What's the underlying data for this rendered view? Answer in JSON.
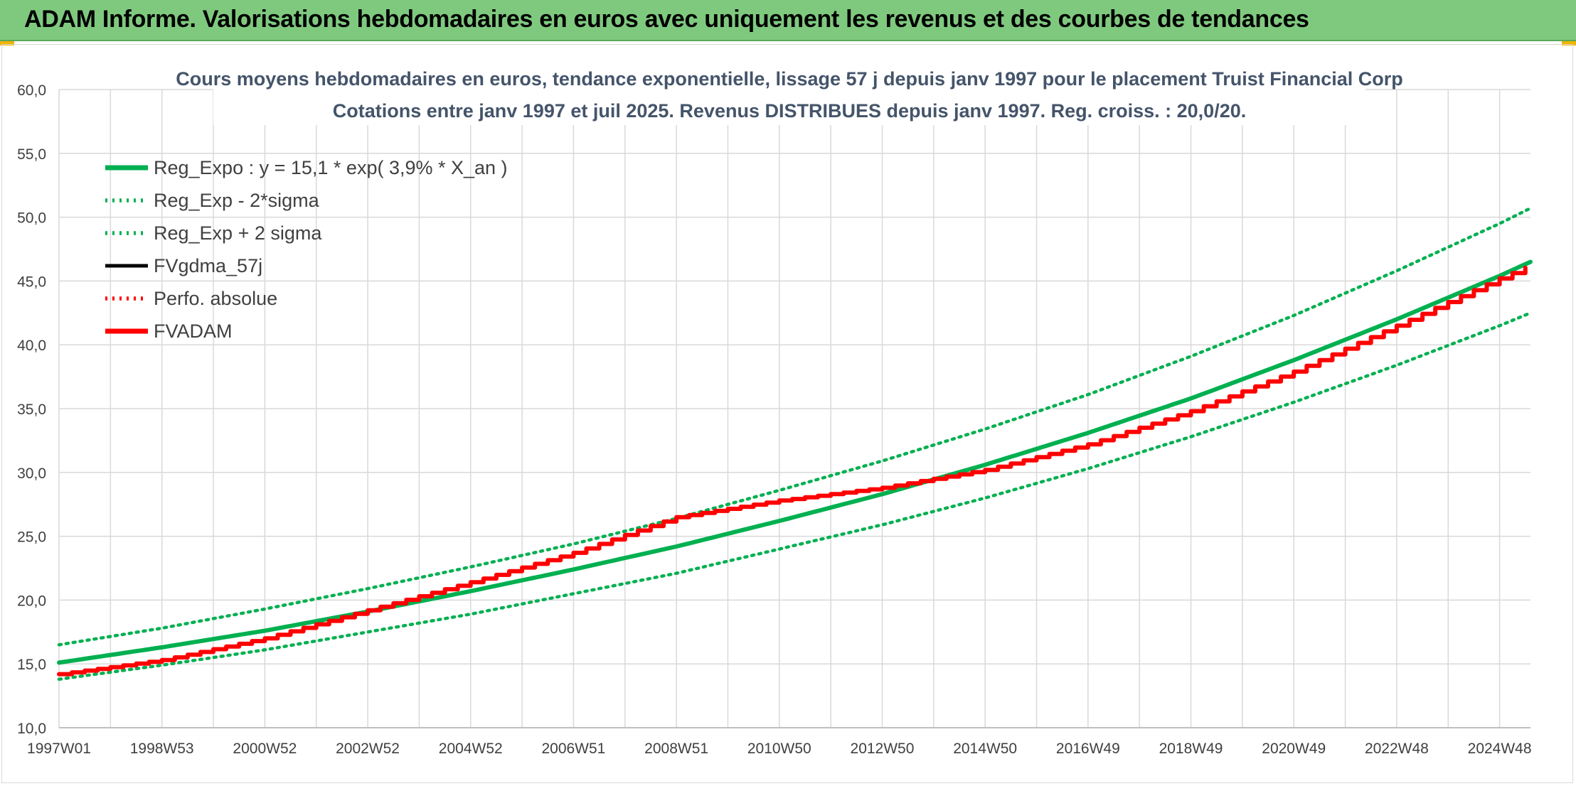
{
  "banner": {
    "title": "ADAM Informe. Valorisations hebdomadaires en euros avec uniquement les revenus et des courbes de tendances"
  },
  "colors": {
    "banner_bg": "#7fc97f",
    "reg_green": "#00b050",
    "fvadam_red": "#ff0000",
    "fvgdma_black": "#000000",
    "grid": "#d9d9d9"
  },
  "chart_data": {
    "type": "line",
    "title": "Cours moyens hebdomadaires en euros, tendance exponentielle, lissage 57 j depuis janv 1997 pour le placement Truist Financial Corp",
    "subtitle": "Cotations entre janv 1997 et juil 2025. Revenus DISTRIBUES depuis janv 1997. Reg. croiss. : 20,0/20.",
    "xlabel": "",
    "ylabel": "",
    "ylim": [
      10,
      60
    ],
    "yticks": [
      "10,0",
      "15,0",
      "20,0",
      "25,0",
      "30,0",
      "35,0",
      "40,0",
      "45,0",
      "50,0",
      "55,0",
      "60,0"
    ],
    "xticks": [
      "1997W01",
      "1998W53",
      "2000W52",
      "2002W52",
      "2004W52",
      "2006W51",
      "2008W51",
      "2010W50",
      "2012W50",
      "2014W50",
      "2016W49",
      "2018W49",
      "2020W49",
      "2022W48",
      "2024W48"
    ],
    "x_years": [
      1997,
      1999,
      2001,
      2003,
      2005,
      2007,
      2009,
      2011,
      2013,
      2015,
      2017,
      2019,
      2021,
      2023,
      2025,
      2025.6
    ],
    "grid": true,
    "legend_position": "top-left",
    "series": [
      {
        "name": "Reg_Expo : y = 15,1 * exp( 3,9% *  X_an )",
        "style": "solid-thick",
        "color": "#00b050",
        "values": [
          15.1,
          16.3,
          17.6,
          19.1,
          20.7,
          22.4,
          24.2,
          26.2,
          28.3,
          30.6,
          33.1,
          35.8,
          38.8,
          42.0,
          45.4,
          46.5
        ]
      },
      {
        "name": "Reg_Exp - 2*sigma",
        "style": "dotted",
        "color": "#00b050",
        "values": [
          13.8,
          14.9,
          16.1,
          17.5,
          18.9,
          20.5,
          22.1,
          24.0,
          25.9,
          28.0,
          30.3,
          32.8,
          35.5,
          38.4,
          41.5,
          42.5
        ]
      },
      {
        "name": "Reg_Exp + 2 sigma",
        "style": "dotted",
        "color": "#00b050",
        "values": [
          16.5,
          17.8,
          19.3,
          20.9,
          22.6,
          24.4,
          26.4,
          28.6,
          30.9,
          33.4,
          36.1,
          39.1,
          42.3,
          45.8,
          49.5,
          50.7
        ]
      },
      {
        "name": "FVgdma_57j",
        "style": "solid",
        "color": "#000000",
        "values": []
      },
      {
        "name": "Perfo. absolue",
        "style": "dotted",
        "color": "#ff0000",
        "values": []
      },
      {
        "name": "FVADAM",
        "style": "solid-thick",
        "color": "#ff0000",
        "values": [
          14.2,
          15.3,
          17.0,
          19.2,
          21.4,
          23.7,
          26.5,
          27.8,
          28.8,
          30.2,
          32.2,
          34.8,
          37.9,
          41.5,
          45.2,
          46.2
        ]
      }
    ]
  }
}
